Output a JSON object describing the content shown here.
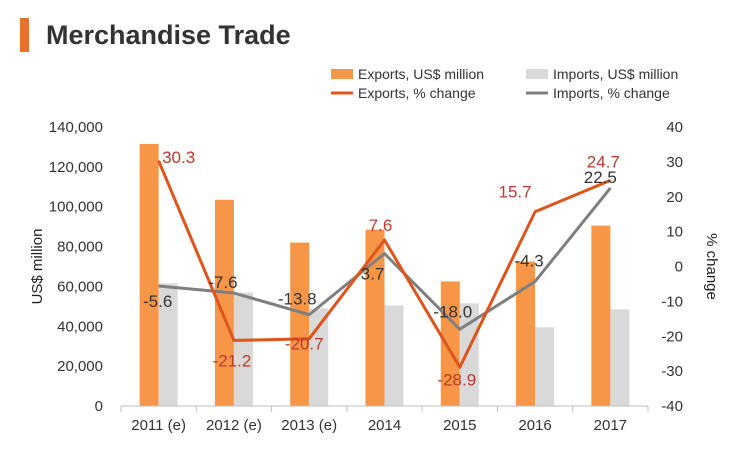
{
  "title": "Merchandise Trade",
  "colors": {
    "accent": "#e8712b",
    "exports_bar": "#f79646",
    "imports_bar": "#d9d9d9",
    "exports_line": "#e0541b",
    "imports_line": "#7f7f7f",
    "exports_label": "#c0392b",
    "imports_label": "#333333"
  },
  "chart_data": {
    "type": "bar",
    "categories": [
      "2011 (e)",
      "2012 (e)",
      "2013 (e)",
      "2014",
      "2015",
      "2016",
      "2017"
    ],
    "series": [
      {
        "name": "Exports, US$ million",
        "type": "bar",
        "axis": "left",
        "values": [
          131500,
          103500,
          82000,
          88500,
          62500,
          72500,
          90500
        ]
      },
      {
        "name": "Imports, US$ million",
        "type": "bar",
        "axis": "left",
        "values": [
          61500,
          57000,
          49000,
          50500,
          51500,
          39500,
          48500
        ]
      },
      {
        "name": "Exports, % change",
        "type": "line",
        "axis": "right",
        "values": [
          30.3,
          -21.2,
          -20.7,
          7.6,
          -28.9,
          15.7,
          24.7
        ]
      },
      {
        "name": "Imports, % change",
        "type": "line",
        "axis": "right",
        "values": [
          -5.6,
          -7.6,
          -13.8,
          3.7,
          -18.0,
          -4.3,
          22.5
        ]
      }
    ],
    "data_labels": {
      "exports_change": [
        "30.3",
        "-21.2",
        "-20.7",
        "7.6",
        "-28.9",
        "15.7",
        "24.7"
      ],
      "imports_change": [
        "-5.6",
        "-7.6",
        "-13.8",
        "3.7",
        "-18.0",
        "-4.3",
        "22.5"
      ]
    },
    "ylabel": "US$ million",
    "y2label": "% change",
    "ylim": [
      0,
      140000
    ],
    "y2lim": [
      -40,
      40
    ],
    "yticks": [
      "0",
      "20,000",
      "40,000",
      "60,000",
      "80,000",
      "100,000",
      "120,000",
      "140,000"
    ],
    "y2ticks": [
      "-40",
      "-30",
      "-20",
      "-10",
      "0",
      "10",
      "20",
      "30",
      "40"
    ],
    "grid": false,
    "legend_position": "top"
  }
}
